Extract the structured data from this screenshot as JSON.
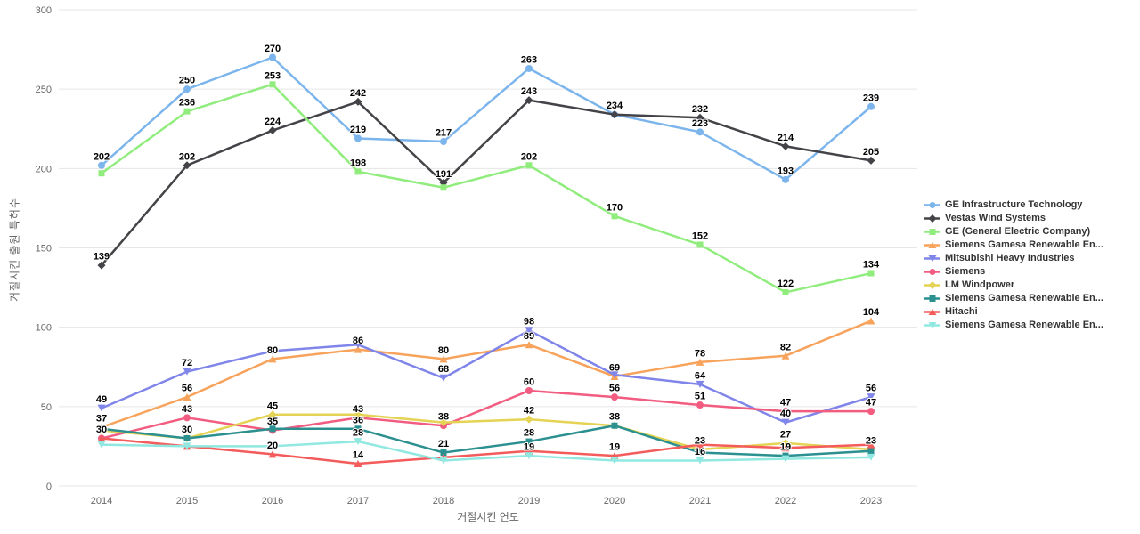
{
  "chart_data": {
    "type": "line",
    "title": "",
    "xlabel": "거절시킨 연도",
    "ylabel": "거절시킨 출원 특허수",
    "x": [
      2014,
      2015,
      2016,
      2017,
      2018,
      2019,
      2020,
      2021,
      2022,
      2023
    ],
    "ylim": [
      0,
      300
    ],
    "yticks": [
      0,
      50,
      100,
      150,
      200,
      250,
      300
    ],
    "grid": "horizontal",
    "legend_position": "right",
    "data_labels": "bold values above each point; overlapping labels hidden",
    "series": [
      {
        "name": "GE Infrastructure Technology",
        "color": "#7cb5ec",
        "marker": "circle",
        "values": [
          202,
          250,
          270,
          219,
          217,
          263,
          234,
          223,
          193,
          239
        ]
      },
      {
        "name": "Vestas Wind Systems",
        "color": "#434348",
        "marker": "diamond",
        "values": [
          139,
          202,
          224,
          242,
          191,
          243,
          234,
          232,
          214,
          205
        ]
      },
      {
        "name": "GE (General Electric Company)",
        "color": "#90ed7d",
        "marker": "square",
        "values": [
          197,
          236,
          253,
          198,
          188,
          202,
          170,
          152,
          122,
          134
        ]
      },
      {
        "name": "Siemens Gamesa Renewable En...",
        "color": "#f7a35c",
        "marker": "triangle",
        "values": [
          37,
          56,
          80,
          86,
          80,
          89,
          69,
          78,
          82,
          104
        ]
      },
      {
        "name": "Mitsubishi Heavy Industries",
        "color": "#8085e9",
        "marker": "triangle-down",
        "values": [
          49,
          72,
          85,
          89,
          68,
          98,
          70,
          64,
          40,
          56
        ]
      },
      {
        "name": "Siemens",
        "color": "#f15c80",
        "marker": "circle",
        "values": [
          30,
          43,
          35,
          43,
          38,
          60,
          56,
          51,
          47,
          47
        ]
      },
      {
        "name": "LM Windpower",
        "color": "#e4d354",
        "marker": "diamond",
        "values": [
          35,
          30,
          45,
          45,
          40,
          42,
          38,
          23,
          27,
          23
        ]
      },
      {
        "name": "Siemens Gamesa Renewable En...",
        "color": "#2b908f",
        "marker": "square",
        "values": [
          36,
          30,
          36,
          36,
          21,
          28,
          38,
          21,
          19,
          22
        ]
      },
      {
        "name": "Hitachi",
        "color": "#f45b5b",
        "marker": "triangle",
        "values": [
          30,
          25,
          20,
          14,
          18,
          22,
          19,
          26,
          24,
          26
        ]
      },
      {
        "name": "Siemens Gamesa Renewable En...",
        "color": "#91e8e1",
        "marker": "triangle-down",
        "values": [
          26,
          25,
          25,
          28,
          16,
          19,
          16,
          16,
          17,
          18
        ]
      }
    ]
  }
}
